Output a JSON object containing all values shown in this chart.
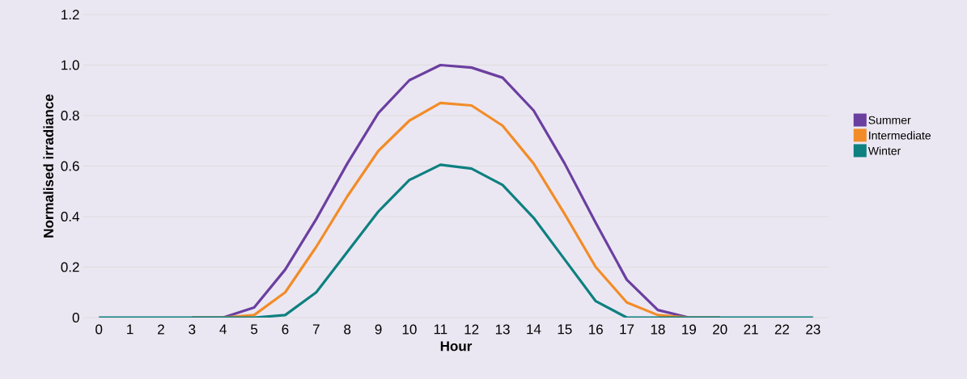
{
  "chart_data": {
    "type": "line",
    "xlabel": "Hour",
    "ylabel": "Normalised irradiance",
    "x": [
      0,
      1,
      2,
      3,
      4,
      5,
      6,
      7,
      8,
      9,
      10,
      11,
      12,
      13,
      14,
      15,
      16,
      17,
      18,
      19,
      20,
      21,
      22,
      23
    ],
    "series": [
      {
        "name": "Summer",
        "color": "#6b3fa0",
        "values": [
          null,
          null,
          null,
          0,
          0,
          0.04,
          0.19,
          0.39,
          0.61,
          0.81,
          0.94,
          1.0,
          0.99,
          0.95,
          0.82,
          0.61,
          0.375,
          0.15,
          0.03,
          0,
          0,
          null,
          null,
          null
        ]
      },
      {
        "name": "Intermediate",
        "color": "#f28c28",
        "values": [
          null,
          null,
          null,
          0,
          0,
          0.01,
          0.1,
          0.28,
          0.48,
          0.66,
          0.78,
          0.85,
          0.84,
          0.76,
          0.61,
          0.41,
          0.2,
          0.06,
          0.01,
          0,
          0,
          null,
          null,
          null
        ]
      },
      {
        "name": "Winter",
        "color": "#0e8080",
        "values": [
          0,
          0,
          0,
          0,
          0,
          0,
          0.01,
          0.1,
          0.26,
          0.42,
          0.545,
          0.605,
          0.59,
          0.525,
          0.395,
          0.23,
          0.065,
          0,
          0,
          0,
          0,
          0,
          0,
          0
        ]
      }
    ],
    "xlim": [
      -0.5,
      23.5
    ],
    "ylim": [
      0,
      1.2
    ],
    "xticks": [
      0,
      1,
      2,
      3,
      4,
      5,
      6,
      7,
      8,
      9,
      10,
      11,
      12,
      13,
      14,
      15,
      16,
      17,
      18,
      19,
      20,
      21,
      22,
      23
    ],
    "yticks": [
      0,
      {
        "value": 0.2,
        "label": "0.2"
      },
      {
        "value": 0.4,
        "label": "0.4"
      },
      {
        "value": 0.6,
        "label": "0.6"
      },
      {
        "value": 0.8,
        "label": "0.8"
      },
      {
        "value": 1.0,
        "label": "1.0"
      },
      {
        "value": 1.2,
        "label": "1.2"
      }
    ],
    "grid": "y",
    "legend": "right",
    "marker": "none",
    "line_style": "solid"
  }
}
